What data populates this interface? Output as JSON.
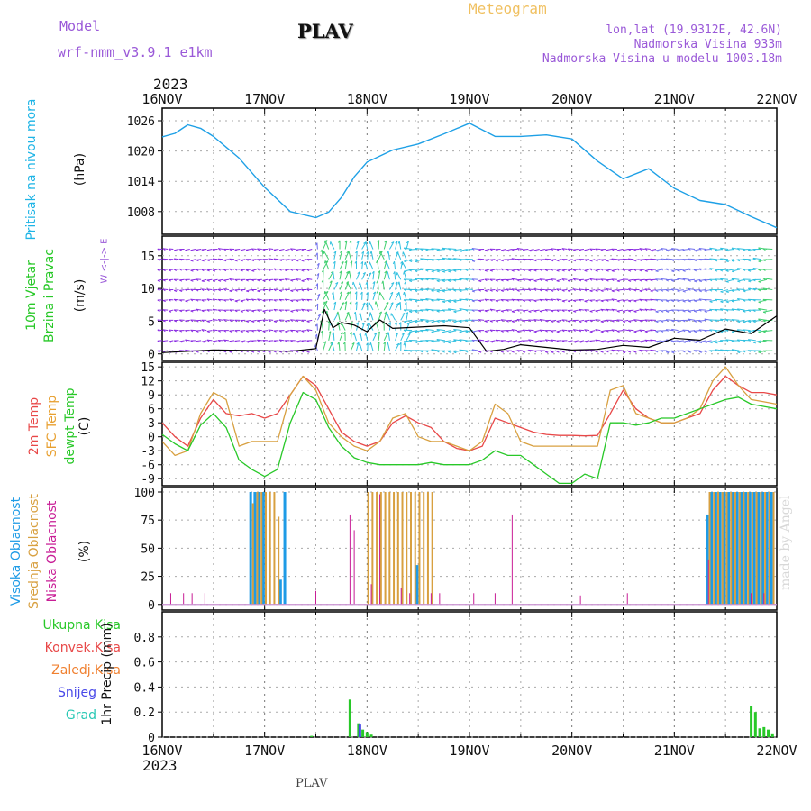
{
  "header": {
    "model_label": "Model",
    "model_name": "wrf-nmm_v3.9.1 e1km",
    "title": "PLAV",
    "meteogram": "Meteogram",
    "lonlat": "lon,lat (19.9312E, 42.6N)",
    "altitude": "Nadmorska Visina 933m",
    "model_altitude": "Nadmorska Visina u modelu 1003.18m",
    "year_top": "2023",
    "year_bottom": "2023",
    "footer": "PLAV",
    "made_by": "made by Angel"
  },
  "dates": [
    "16NOV",
    "17NOV",
    "18NOV",
    "19NOV",
    "20NOV",
    "21NOV",
    "22NOV"
  ],
  "labels": {
    "pressure": {
      "name": "Pritisak na nivou mora",
      "unit": "(hPa)"
    },
    "wind": {
      "name1": "10m Vjetar",
      "name2": "Brzina i Pravac",
      "unit": "(m/s)",
      "compass": "W <-|-> E"
    },
    "temp": {
      "t2": "2m Temp",
      "sfc": "SFC Temp",
      "dew": "dewpt Temp",
      "unit": "(C)"
    },
    "cloud": {
      "high": "Visoka Oblacnost",
      "mid": "Srednja Oblacnost",
      "low": "Niska Oblacnost",
      "unit": "(%)"
    },
    "precip": {
      "total": "Ukupna Kisa",
      "conv": "Konvek.Kisa",
      "frz": "Zaledj.Kisa",
      "snow": "Snijeg",
      "hail": "Grad",
      "unit": "1hr Precip (mm)"
    }
  },
  "colors": {
    "pressure": "#1ea0e6",
    "t2": "#e84848",
    "sfc": "#d8a040",
    "dew": "#28c828",
    "label_pressure": "#1eb4e6",
    "label_wind": "#28c828",
    "label_t2": "#e84848",
    "label_sfc": "#e8a030",
    "label_dew": "#28c828",
    "high": "#1e9be6",
    "mid": "#d8a040",
    "low": "#c81e96",
    "ptotal": "#28c828",
    "pconv": "#e84848",
    "pfrz": "#f08030",
    "psnow": "#4848e8",
    "phail": "#28c8b4"
  },
  "chart_data": [
    {
      "type": "line",
      "title": "Pritisak na nivou mora",
      "ylabel": "(hPa)",
      "ylim": [
        1003.5,
        1028.5
      ],
      "yticks": [
        1008,
        1014,
        1020,
        1026
      ],
      "grid": true,
      "x_hours": [
        0,
        3,
        6,
        9,
        12,
        18,
        24,
        30,
        36,
        39,
        42,
        45,
        48,
        54,
        60,
        66,
        72,
        78,
        84,
        90,
        96,
        102,
        108,
        114,
        120,
        126,
        132,
        138,
        144
      ],
      "series": [
        {
          "name": "Pritisak na nivou mora",
          "values": [
            1022.8,
            1023.5,
            1025.2,
            1024.5,
            1022.9,
            1018.6,
            1012.8,
            1008.0,
            1006.8,
            1007.9,
            1010.8,
            1014.9,
            1017.8,
            1020.2,
            1021.4,
            1023.4,
            1025.5,
            1022.9,
            1022.9,
            1023.2,
            1022.4,
            1018.0,
            1014.5,
            1016.5,
            1012.6,
            1010.2,
            1009.4,
            1007.0,
            1004.8
          ]
        }
      ]
    },
    {
      "type": "line",
      "title": "10m Vjetar Brzina i Pravac",
      "ylabel": "(m/s)",
      "ylim": [
        -1,
        18
      ],
      "yticks": [
        0,
        5,
        10,
        15
      ],
      "grid": true,
      "barbs": "wind direction arrows coloured by speed",
      "x_hours": [
        0,
        12,
        24,
        30,
        36,
        38,
        40,
        42,
        45,
        48,
        51,
        54,
        60,
        66,
        72,
        76,
        80,
        84,
        90,
        96,
        102,
        108,
        114,
        120,
        126,
        132,
        138,
        144
      ],
      "series": [
        {
          "name": "10m Vjetar",
          "values": [
            0.2,
            0.6,
            0.5,
            0.4,
            0.8,
            6.8,
            4.0,
            4.8,
            4.4,
            3.4,
            5.2,
            3.9,
            4.1,
            4.3,
            4.0,
            0.4,
            0.7,
            1.4,
            1.0,
            0.6,
            0.7,
            1.3,
            1.0,
            2.4,
            2.1,
            3.8,
            3.1,
            5.8
          ]
        }
      ]
    },
    {
      "type": "line",
      "title": "2m Temp / SFC Temp / dewpt Temp",
      "ylabel": "(C)",
      "ylim": [
        -10.5,
        16
      ],
      "yticks": [
        -9,
        -6,
        -3,
        0,
        3,
        6,
        9,
        12,
        15
      ],
      "grid": true,
      "x_hours": [
        0,
        3,
        6,
        9,
        12,
        15,
        18,
        21,
        24,
        27,
        30,
        33,
        36,
        39,
        42,
        45,
        48,
        51,
        54,
        57,
        60,
        63,
        66,
        69,
        72,
        75,
        78,
        81,
        84,
        87,
        90,
        93,
        96,
        99,
        102,
        105,
        108,
        111,
        114,
        117,
        120,
        123,
        126,
        129,
        132,
        135,
        138,
        141,
        144
      ],
      "series": [
        {
          "name": "2m Temp",
          "values": [
            3,
            0,
            -2,
            4,
            8,
            5,
            4.5,
            5,
            4,
            5,
            9,
            13,
            11,
            6,
            1,
            -1,
            -2,
            -1,
            3,
            4.5,
            3,
            2,
            -1,
            -2.5,
            -3,
            -2,
            4,
            3,
            2,
            1,
            0.5,
            0.3,
            0.3,
            0.2,
            0.3,
            5,
            10,
            6,
            4,
            3,
            3,
            4,
            5,
            10,
            13,
            11,
            9.5,
            9.5,
            9
          ]
        },
        {
          "name": "SFC Temp",
          "values": [
            -1,
            -4,
            -3,
            5,
            9.5,
            8,
            -2,
            -1,
            -1,
            -1,
            9,
            13,
            10,
            3,
            0,
            -2,
            -3,
            -1,
            4,
            5,
            0,
            -1,
            -1,
            -2,
            -3,
            -1,
            7,
            5,
            -1,
            -2,
            -2,
            -2,
            -2,
            -2,
            -2,
            10,
            11,
            5,
            4,
            3,
            3,
            4,
            6,
            12,
            15,
            11,
            8,
            7.5,
            7
          ]
        },
        {
          "name": "dewpt Temp",
          "values": [
            0.5,
            -1.5,
            -3,
            2.5,
            5,
            2,
            -5,
            -7,
            -8.5,
            -7,
            3,
            9.5,
            8,
            2,
            -2,
            -4.5,
            -5.5,
            -6,
            -6,
            -6,
            -6,
            -5.5,
            -6,
            -6,
            -6,
            -5,
            -3,
            -4,
            -4,
            -6,
            -8,
            -10,
            -10,
            -8,
            -9,
            3,
            3,
            2.5,
            3,
            4,
            4,
            5,
            6,
            7,
            8,
            8.5,
            7,
            6.5,
            6
          ]
        }
      ]
    },
    {
      "type": "bar",
      "title": "Visoka / Srednja / Niska Oblacnost",
      "ylabel": "(%)",
      "ylim": [
        -5,
        104
      ],
      "yticks": [
        0,
        25,
        50,
        75,
        100
      ],
      "grid": true,
      "series": [
        {
          "name": "Visoka Oblacnost",
          "x_hours": [
            21,
            22,
            23,
            24,
            28,
            29,
            60,
            128,
            129,
            130,
            131,
            132,
            133,
            134,
            135,
            136,
            137,
            138,
            139,
            140,
            141,
            142,
            143
          ],
          "values": [
            100,
            100,
            100,
            100,
            22,
            100,
            35,
            80,
            100,
            100,
            100,
            100,
            100,
            100,
            100,
            100,
            100,
            100,
            100,
            100,
            100,
            100,
            100
          ]
        },
        {
          "name": "Srednja Oblacnost",
          "x_hours": [
            21,
            22,
            23,
            24,
            25,
            26,
            27,
            48,
            49,
            50,
            51,
            52,
            53,
            54,
            55,
            56,
            57,
            58,
            59,
            60,
            61,
            62,
            63,
            128,
            129,
            130,
            131,
            132,
            133,
            134,
            135,
            136,
            137,
            138,
            139,
            140,
            141,
            142,
            143
          ],
          "values": [
            90,
            100,
            100,
            100,
            100,
            100,
            78,
            100,
            100,
            100,
            100,
            100,
            100,
            100,
            100,
            100,
            100,
            100,
            100,
            100,
            100,
            100,
            100,
            100,
            100,
            100,
            100,
            100,
            100,
            100,
            100,
            100,
            100,
            100,
            100,
            100,
            100,
            100,
            100
          ]
        },
        {
          "name": "Niska Oblacnost",
          "x_hours": [
            2,
            5,
            7,
            10,
            36,
            44,
            45,
            49,
            51,
            56,
            58,
            63,
            65,
            73,
            78,
            82,
            98,
            109,
            128,
            138,
            141
          ],
          "values": [
            10,
            10,
            10,
            10,
            12,
            80,
            66,
            18,
            98,
            15,
            10,
            10,
            10,
            10,
            10,
            80,
            8,
            10,
            40,
            10,
            10
          ]
        }
      ]
    },
    {
      "type": "bar",
      "title": "1hr Precip",
      "ylabel": "1hr Precip (mm)",
      "ylim": [
        0,
        1
      ],
      "yticks": [
        0,
        0.2,
        0.4,
        0.6,
        0.8
      ],
      "grid": true,
      "series": [
        {
          "name": "Ukupna Kisa",
          "x_hours": [
            35,
            44,
            46,
            47,
            48,
            49,
            138,
            139,
            140,
            141,
            142,
            143
          ],
          "values": [
            0.01,
            0.3,
            0.11,
            0.06,
            0.04,
            0.02,
            0.25,
            0.2,
            0.07,
            0.08,
            0.06,
            0.03
          ]
        },
        {
          "name": "Snijeg",
          "x_hours": [
            46
          ],
          "values": [
            0.1
          ]
        }
      ]
    }
  ]
}
